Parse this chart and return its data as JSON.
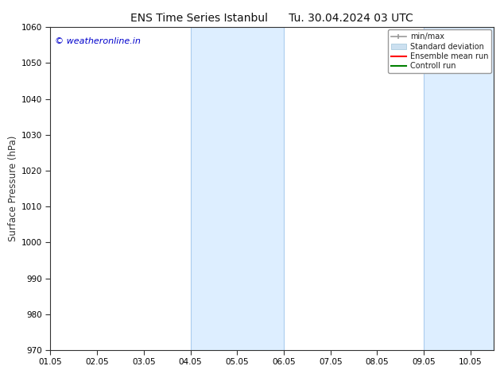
{
  "title_left": "ENS Time Series Istanbul",
  "title_right": "Tu. 30.04.2024 03 UTC",
  "ylabel": "Surface Pressure (hPa)",
  "ylim": [
    970,
    1060
  ],
  "yticks": [
    970,
    980,
    990,
    1000,
    1010,
    1020,
    1030,
    1040,
    1050,
    1060
  ],
  "xlim_start": 0.0,
  "xlim_end": 9.5,
  "xtick_labels": [
    "01.05",
    "02.05",
    "03.05",
    "04.05",
    "05.05",
    "06.05",
    "07.05",
    "08.05",
    "09.05",
    "10.05"
  ],
  "xtick_positions": [
    0,
    1,
    2,
    3,
    4,
    5,
    6,
    7,
    8,
    9
  ],
  "shaded_regions": [
    {
      "x_start": 3.0,
      "x_end": 5.0,
      "color": "#ddeeff"
    },
    {
      "x_start": 8.0,
      "x_end": 9.5,
      "color": "#ddeeff"
    }
  ],
  "shade_border_color": "#aaccee",
  "shade_border_lw": 0.8,
  "watermark": "© weatheronline.in",
  "watermark_color": "#0000cc",
  "bg_color": "#ffffff",
  "axis_color": "#333333",
  "legend_items": [
    {
      "label": "min/max",
      "color": "#aaaaaa",
      "type": "hline_caps"
    },
    {
      "label": "Standard deviation",
      "color": "#ccddee",
      "type": "thick_bar"
    },
    {
      "label": "Ensemble mean run",
      "color": "#ff0000",
      "type": "line"
    },
    {
      "label": "Controll run",
      "color": "#008000",
      "type": "line"
    }
  ],
  "title_fontsize": 10,
  "tick_fontsize": 7.5,
  "label_fontsize": 8.5,
  "watermark_fontsize": 8
}
